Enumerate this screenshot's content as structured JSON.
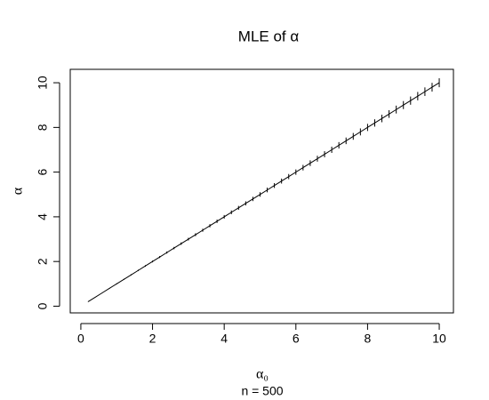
{
  "chart_data": {
    "type": "errorbar-line",
    "title": "MLE of α",
    "y_label": "α",
    "x_label": "α₀",
    "subtitle": "n = 500",
    "color": "#000000",
    "x": [
      0.2,
      0.4,
      0.6,
      0.8,
      1,
      1.2,
      1.4,
      1.6,
      1.8,
      2,
      2.2,
      2.4,
      2.6,
      2.8,
      3,
      3.2,
      3.4,
      3.6,
      3.8,
      4,
      4.2,
      4.4,
      4.6,
      4.8,
      5,
      5.2,
      5.4,
      5.6,
      5.8,
      6,
      6.2,
      6.4,
      6.6,
      6.8,
      7,
      7.2,
      7.4,
      7.6,
      7.8,
      8,
      8.2,
      8.4,
      8.6,
      8.8,
      9,
      9.2,
      9.4,
      9.6,
      9.8,
      10
    ],
    "y": [
      0.2,
      0.4,
      0.6,
      0.8,
      1,
      1.2,
      1.4,
      1.6,
      1.8,
      2,
      2.2,
      2.4,
      2.6,
      2.8,
      3,
      3.2,
      3.4,
      3.6,
      3.8,
      4,
      4.2,
      4.4,
      4.6,
      4.8,
      5,
      5.2,
      5.4,
      5.6,
      5.8,
      6,
      6.2,
      6.4,
      6.6,
      6.8,
      7,
      7.2,
      7.4,
      7.6,
      7.8,
      8,
      8.2,
      8.4,
      8.6,
      8.8,
      9,
      9.2,
      9.4,
      9.6,
      9.8,
      10
    ],
    "errors": [
      0.004,
      0.008,
      0.012,
      0.016,
      0.02,
      0.024,
      0.028,
      0.032,
      0.036,
      0.04,
      0.044,
      0.048,
      0.052,
      0.056,
      0.06,
      0.064,
      0.068,
      0.072,
      0.076,
      0.08,
      0.084,
      0.088,
      0.092,
      0.096,
      0.1,
      0.104,
      0.108,
      0.112,
      0.116,
      0.12,
      0.124,
      0.128,
      0.132,
      0.136,
      0.14,
      0.144,
      0.148,
      0.152,
      0.156,
      0.16,
      0.164,
      0.168,
      0.172,
      0.176,
      0.18,
      0.184,
      0.188,
      0.192,
      0.196,
      0.2
    ],
    "xlim": [
      -0.296,
      10.396
    ],
    "ylim": [
      -0.3,
      10.6
    ],
    "xticks": [
      0,
      2,
      4,
      6,
      8,
      10
    ],
    "yticks": [
      0,
      2,
      4,
      6,
      8,
      10
    ]
  }
}
